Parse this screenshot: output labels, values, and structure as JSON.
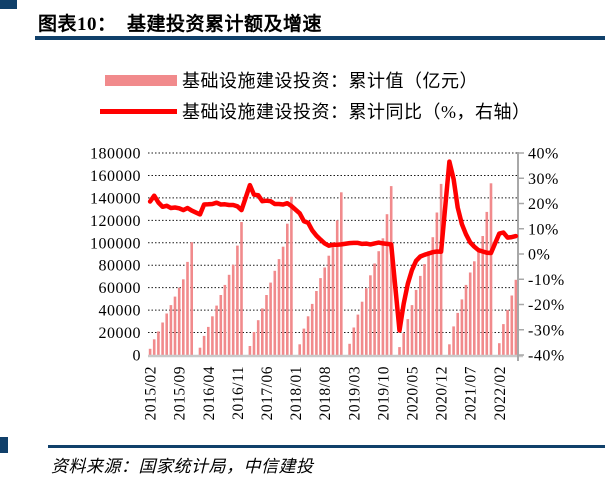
{
  "page": {
    "title": "图表10：  基建投资累计额及增速",
    "source": "资料来源：国家统计局，中信建投"
  },
  "colors": {
    "accent_navy": "#10406A",
    "bar_pink": "#F18A8C",
    "line_red": "#FF0000",
    "gridline": "#1A1A1A",
    "axis_gray": "#A8A8A8"
  },
  "legend": [
    {
      "type": "bar",
      "label": "基础设施建设投资：累计值（亿元）",
      "color": "#F18A8C"
    },
    {
      "type": "line",
      "label": "基础设施建设投资：累计同比（%，右轴）",
      "color": "#FF0000"
    }
  ],
  "chart_data": {
    "type": "bar+line combo",
    "title": "基建投资累计额及增速",
    "grid": "horizontal dotted",
    "legend_position": "top-center",
    "months": [
      "2015/02",
      "2015/03",
      "2015/04",
      "2015/05",
      "2015/06",
      "2015/07",
      "2015/08",
      "2015/09",
      "2015/10",
      "2015/11",
      "2015/12",
      "2016/02",
      "2016/03",
      "2016/04",
      "2016/05",
      "2016/06",
      "2016/07",
      "2016/08",
      "2016/09",
      "2016/10",
      "2016/11",
      "2016/12",
      "2017/02",
      "2017/03",
      "2017/04",
      "2017/05",
      "2017/06",
      "2017/07",
      "2017/08",
      "2017/09",
      "2017/10",
      "2017/11",
      "2017/12",
      "2018/02",
      "2018/03",
      "2018/04",
      "2018/05",
      "2018/06",
      "2018/07",
      "2018/08",
      "2018/09",
      "2018/10",
      "2018/11",
      "2018/12",
      "2019/02",
      "2019/03",
      "2019/04",
      "2019/05",
      "2019/06",
      "2019/07",
      "2019/08",
      "2019/09",
      "2019/10",
      "2019/11",
      "2019/12",
      "2020/02",
      "2020/03",
      "2020/04",
      "2020/05",
      "2020/06",
      "2020/07",
      "2020/08",
      "2020/09",
      "2020/10",
      "2020/11",
      "2020/12",
      "2021/02",
      "2021/03",
      "2021/04",
      "2021/05",
      "2021/06",
      "2021/07",
      "2021/08",
      "2021/09",
      "2021/10",
      "2021/11",
      "2021/12",
      "2022/02",
      "2022/03",
      "2022/04",
      "2022/05",
      "2022/06"
    ],
    "series": [
      {
        "name": "基础设施建设投资：累计值（亿元）",
        "type": "bar",
        "axis": "left",
        "color": "#F18A8C",
        "values": [
          5500,
          14000,
          21000,
          29000,
          37000,
          44500,
          52000,
          60000,
          67500,
          83000,
          100500,
          6500,
          17000,
          25000,
          34500,
          44000,
          53500,
          62500,
          71500,
          80500,
          97500,
          118500,
          8000,
          20500,
          31000,
          41500,
          53500,
          64500,
          75000,
          85500,
          96500,
          117000,
          141000,
          9500,
          23500,
          34500,
          45500,
          57000,
          68500,
          78000,
          88500,
          100000,
          120000,
          145000,
          10000,
          24500,
          36000,
          47500,
          59500,
          71000,
          81500,
          92500,
          104000,
          125500,
          150500,
          7000,
          19500,
          32000,
          44500,
          58000,
          70500,
          81000,
          92500,
          105000,
          127000,
          152500,
          9500,
          25500,
          37500,
          49500,
          62500,
          73500,
          83500,
          94000,
          106000,
          127500,
          153000,
          10500,
          27500,
          40000,
          53000,
          67000
        ]
      },
      {
        "name": "基础设施建设投资：累计同比（%，右轴）",
        "type": "line",
        "axis": "right",
        "color": "#FF0000",
        "values": [
          20.8,
          23.1,
          20.4,
          18.7,
          19.1,
          18.2,
          18.4,
          18.1,
          17.4,
          18.2,
          17.2,
          15.7,
          19.6,
          19.7,
          19.8,
          20.3,
          19.6,
          19.7,
          19.4,
          19.4,
          18.9,
          17.4,
          27.3,
          23.5,
          23.3,
          20.9,
          21.1,
          20.9,
          19.8,
          19.8,
          19.6,
          20.1,
          19.0,
          16.1,
          13.0,
          12.4,
          9.4,
          7.3,
          5.7,
          4.2,
          3.3,
          3.7,
          3.7,
          3.8,
          4.3,
          4.4,
          4.4,
          4.0,
          4.1,
          3.8,
          4.2,
          4.5,
          4.2,
          4.0,
          3.8,
          -30.3,
          -19.7,
          -11.8,
          -6.3,
          -2.7,
          -1.0,
          -0.3,
          0.2,
          0.7,
          1.0,
          0.9,
          36.6,
          29.7,
          18.4,
          11.8,
          7.8,
          4.6,
          2.9,
          1.5,
          1.0,
          0.5,
          0.4,
          8.1,
          8.5,
          6.5,
          6.7,
          7.1
        ]
      }
    ],
    "left_axis": {
      "min": 0,
      "max": 180000,
      "step": 20000,
      "ticks": [
        "180000",
        "160000",
        "140000",
        "120000",
        "100000",
        "80000",
        "60000",
        "40000",
        "20000",
        "0"
      ]
    },
    "right_axis": {
      "min": -40,
      "max": 40,
      "step": 10,
      "ticks": [
        "40%",
        "30%",
        "20%",
        "10%",
        "0%",
        "-10%",
        "-20%",
        "-30%",
        "-40%"
      ]
    },
    "x_tick_labels": [
      "2015/02",
      "2015/09",
      "2016/04",
      "2016/11",
      "2017/06",
      "2018/01",
      "2018/08",
      "2019/03",
      "2019/10",
      "2020/05",
      "2020/12",
      "2021/07",
      "2022/02"
    ]
  }
}
